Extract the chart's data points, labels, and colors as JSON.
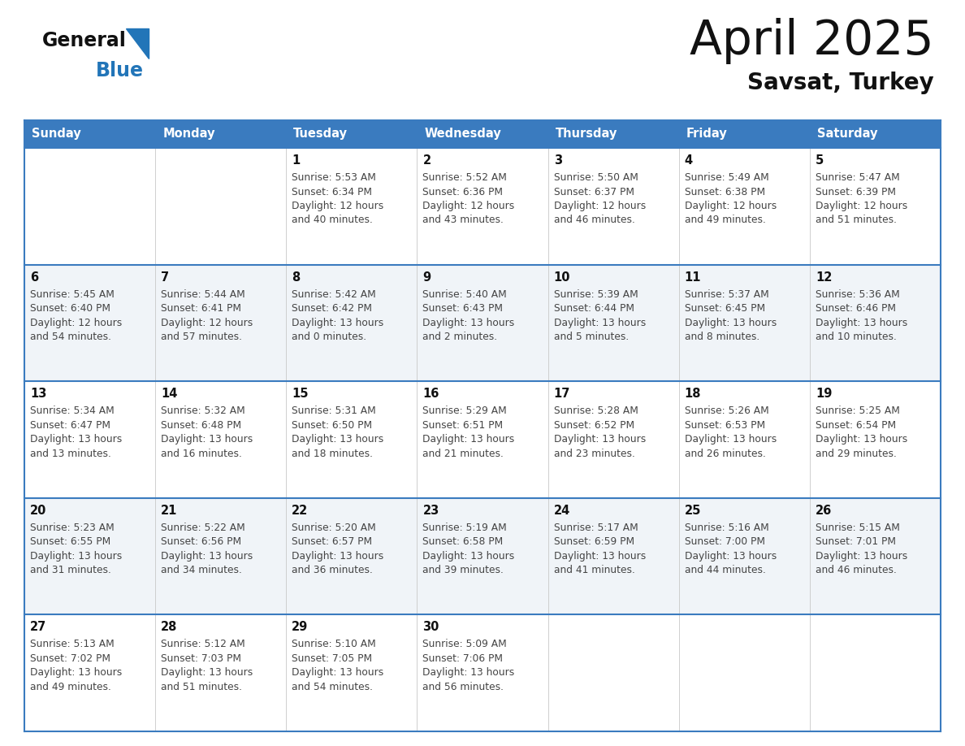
{
  "title": "April 2025",
  "subtitle": "Savsat, Turkey",
  "header_bg_color": "#3a7bbf",
  "header_text_color": "#ffffff",
  "border_color": "#3a7bbf",
  "day_headers": [
    "Sunday",
    "Monday",
    "Tuesday",
    "Wednesday",
    "Thursday",
    "Friday",
    "Saturday"
  ],
  "title_color": "#111111",
  "subtitle_color": "#111111",
  "day_num_color": "#111111",
  "info_color": "#444444",
  "logo_black": "#111111",
  "logo_blue": "#2275b8",
  "weeks": [
    [
      {
        "day": "",
        "sunrise": "",
        "sunset": "",
        "daylight": ""
      },
      {
        "day": "",
        "sunrise": "",
        "sunset": "",
        "daylight": ""
      },
      {
        "day": "1",
        "sunrise": "Sunrise: 5:53 AM",
        "sunset": "Sunset: 6:34 PM",
        "daylight": "Daylight: 12 hours\nand 40 minutes."
      },
      {
        "day": "2",
        "sunrise": "Sunrise: 5:52 AM",
        "sunset": "Sunset: 6:36 PM",
        "daylight": "Daylight: 12 hours\nand 43 minutes."
      },
      {
        "day": "3",
        "sunrise": "Sunrise: 5:50 AM",
        "sunset": "Sunset: 6:37 PM",
        "daylight": "Daylight: 12 hours\nand 46 minutes."
      },
      {
        "day": "4",
        "sunrise": "Sunrise: 5:49 AM",
        "sunset": "Sunset: 6:38 PM",
        "daylight": "Daylight: 12 hours\nand 49 minutes."
      },
      {
        "day": "5",
        "sunrise": "Sunrise: 5:47 AM",
        "sunset": "Sunset: 6:39 PM",
        "daylight": "Daylight: 12 hours\nand 51 minutes."
      }
    ],
    [
      {
        "day": "6",
        "sunrise": "Sunrise: 5:45 AM",
        "sunset": "Sunset: 6:40 PM",
        "daylight": "Daylight: 12 hours\nand 54 minutes."
      },
      {
        "day": "7",
        "sunrise": "Sunrise: 5:44 AM",
        "sunset": "Sunset: 6:41 PM",
        "daylight": "Daylight: 12 hours\nand 57 minutes."
      },
      {
        "day": "8",
        "sunrise": "Sunrise: 5:42 AM",
        "sunset": "Sunset: 6:42 PM",
        "daylight": "Daylight: 13 hours\nand 0 minutes."
      },
      {
        "day": "9",
        "sunrise": "Sunrise: 5:40 AM",
        "sunset": "Sunset: 6:43 PM",
        "daylight": "Daylight: 13 hours\nand 2 minutes."
      },
      {
        "day": "10",
        "sunrise": "Sunrise: 5:39 AM",
        "sunset": "Sunset: 6:44 PM",
        "daylight": "Daylight: 13 hours\nand 5 minutes."
      },
      {
        "day": "11",
        "sunrise": "Sunrise: 5:37 AM",
        "sunset": "Sunset: 6:45 PM",
        "daylight": "Daylight: 13 hours\nand 8 minutes."
      },
      {
        "day": "12",
        "sunrise": "Sunrise: 5:36 AM",
        "sunset": "Sunset: 6:46 PM",
        "daylight": "Daylight: 13 hours\nand 10 minutes."
      }
    ],
    [
      {
        "day": "13",
        "sunrise": "Sunrise: 5:34 AM",
        "sunset": "Sunset: 6:47 PM",
        "daylight": "Daylight: 13 hours\nand 13 minutes."
      },
      {
        "day": "14",
        "sunrise": "Sunrise: 5:32 AM",
        "sunset": "Sunset: 6:48 PM",
        "daylight": "Daylight: 13 hours\nand 16 minutes."
      },
      {
        "day": "15",
        "sunrise": "Sunrise: 5:31 AM",
        "sunset": "Sunset: 6:50 PM",
        "daylight": "Daylight: 13 hours\nand 18 minutes."
      },
      {
        "day": "16",
        "sunrise": "Sunrise: 5:29 AM",
        "sunset": "Sunset: 6:51 PM",
        "daylight": "Daylight: 13 hours\nand 21 minutes."
      },
      {
        "day": "17",
        "sunrise": "Sunrise: 5:28 AM",
        "sunset": "Sunset: 6:52 PM",
        "daylight": "Daylight: 13 hours\nand 23 minutes."
      },
      {
        "day": "18",
        "sunrise": "Sunrise: 5:26 AM",
        "sunset": "Sunset: 6:53 PM",
        "daylight": "Daylight: 13 hours\nand 26 minutes."
      },
      {
        "day": "19",
        "sunrise": "Sunrise: 5:25 AM",
        "sunset": "Sunset: 6:54 PM",
        "daylight": "Daylight: 13 hours\nand 29 minutes."
      }
    ],
    [
      {
        "day": "20",
        "sunrise": "Sunrise: 5:23 AM",
        "sunset": "Sunset: 6:55 PM",
        "daylight": "Daylight: 13 hours\nand 31 minutes."
      },
      {
        "day": "21",
        "sunrise": "Sunrise: 5:22 AM",
        "sunset": "Sunset: 6:56 PM",
        "daylight": "Daylight: 13 hours\nand 34 minutes."
      },
      {
        "day": "22",
        "sunrise": "Sunrise: 5:20 AM",
        "sunset": "Sunset: 6:57 PM",
        "daylight": "Daylight: 13 hours\nand 36 minutes."
      },
      {
        "day": "23",
        "sunrise": "Sunrise: 5:19 AM",
        "sunset": "Sunset: 6:58 PM",
        "daylight": "Daylight: 13 hours\nand 39 minutes."
      },
      {
        "day": "24",
        "sunrise": "Sunrise: 5:17 AM",
        "sunset": "Sunset: 6:59 PM",
        "daylight": "Daylight: 13 hours\nand 41 minutes."
      },
      {
        "day": "25",
        "sunrise": "Sunrise: 5:16 AM",
        "sunset": "Sunset: 7:00 PM",
        "daylight": "Daylight: 13 hours\nand 44 minutes."
      },
      {
        "day": "26",
        "sunrise": "Sunrise: 5:15 AM",
        "sunset": "Sunset: 7:01 PM",
        "daylight": "Daylight: 13 hours\nand 46 minutes."
      }
    ],
    [
      {
        "day": "27",
        "sunrise": "Sunrise: 5:13 AM",
        "sunset": "Sunset: 7:02 PM",
        "daylight": "Daylight: 13 hours\nand 49 minutes."
      },
      {
        "day": "28",
        "sunrise": "Sunrise: 5:12 AM",
        "sunset": "Sunset: 7:03 PM",
        "daylight": "Daylight: 13 hours\nand 51 minutes."
      },
      {
        "day": "29",
        "sunrise": "Sunrise: 5:10 AM",
        "sunset": "Sunset: 7:05 PM",
        "daylight": "Daylight: 13 hours\nand 54 minutes."
      },
      {
        "day": "30",
        "sunrise": "Sunrise: 5:09 AM",
        "sunset": "Sunset: 7:06 PM",
        "daylight": "Daylight: 13 hours\nand 56 minutes."
      },
      {
        "day": "",
        "sunrise": "",
        "sunset": "",
        "daylight": ""
      },
      {
        "day": "",
        "sunrise": "",
        "sunset": "",
        "daylight": ""
      },
      {
        "day": "",
        "sunrise": "",
        "sunset": "",
        "daylight": ""
      }
    ]
  ]
}
